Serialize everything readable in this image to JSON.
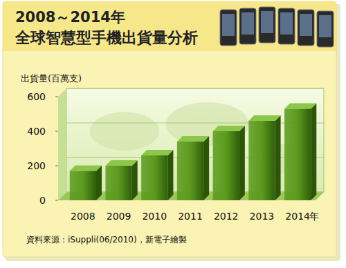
{
  "chart_data": {
    "type": "bar",
    "title": "2008～2014年",
    "subtitle": "全球智慧型手機出貨量分析",
    "y_label": "出貨量(百萬支)",
    "x_label": "年",
    "source": "資料來源：iSuppli(06/2010)，新電子繪製",
    "categories": [
      "2008",
      "2009",
      "2010",
      "2011",
      "2012",
      "2013",
      "2014"
    ],
    "values": [
      170,
      200,
      260,
      340,
      400,
      460,
      530
    ],
    "color": "#5c9a1e",
    "ylim": [
      0,
      600
    ],
    "yticks": [
      0,
      200,
      400,
      600
    ],
    "grid": true
  }
}
